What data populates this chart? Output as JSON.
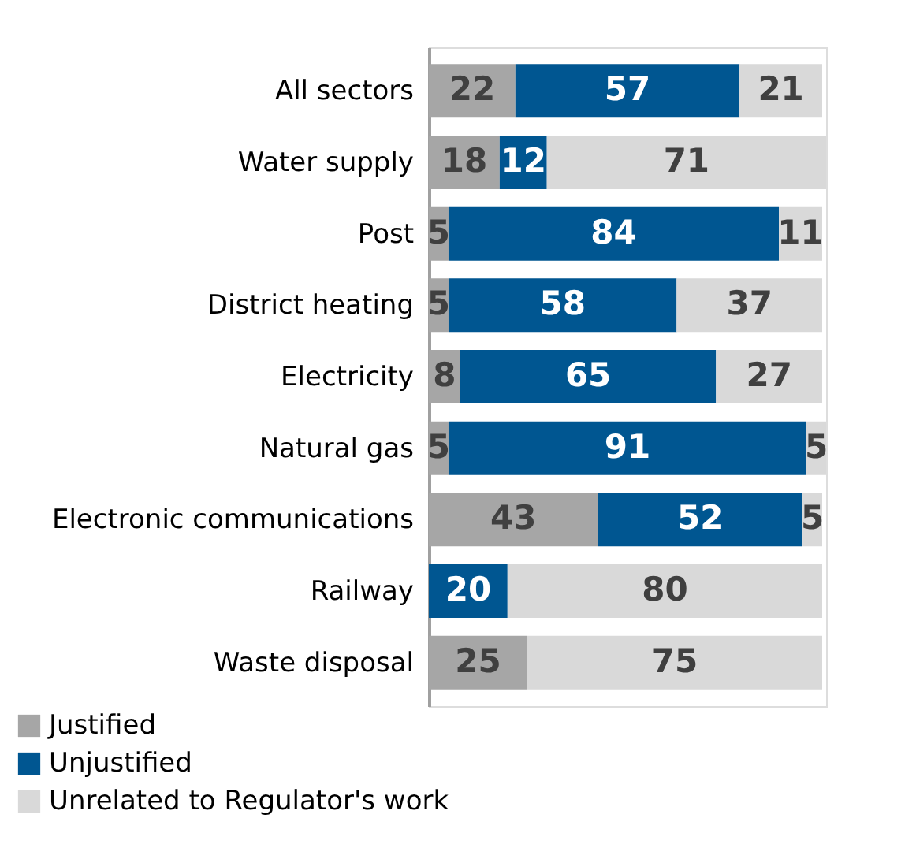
{
  "chart_data": {
    "type": "bar",
    "orientation": "horizontal",
    "stacked": true,
    "data_labels": true,
    "legend": "bottom left",
    "grid": false,
    "categories": [
      "All sectors",
      "Water supply",
      "Post",
      "District heating",
      "Electricity",
      "Natural gas",
      "Electronic communications",
      "Railway",
      "Waste disposal"
    ],
    "series": [
      {
        "name": "Justified",
        "color": "#a6a6a6",
        "values": [
          22,
          18,
          5,
          5,
          8,
          5,
          43,
          null,
          25
        ]
      },
      {
        "name": "Unjustified",
        "color": "#005691",
        "values": [
          57,
          12,
          84,
          58,
          65,
          91,
          52,
          20,
          null
        ]
      },
      {
        "name": "Unrelated to Regulator's work",
        "color": "#d9d9d9",
        "values": [
          21,
          71,
          11,
          37,
          27,
          5,
          5,
          80,
          75
        ]
      }
    ]
  }
}
